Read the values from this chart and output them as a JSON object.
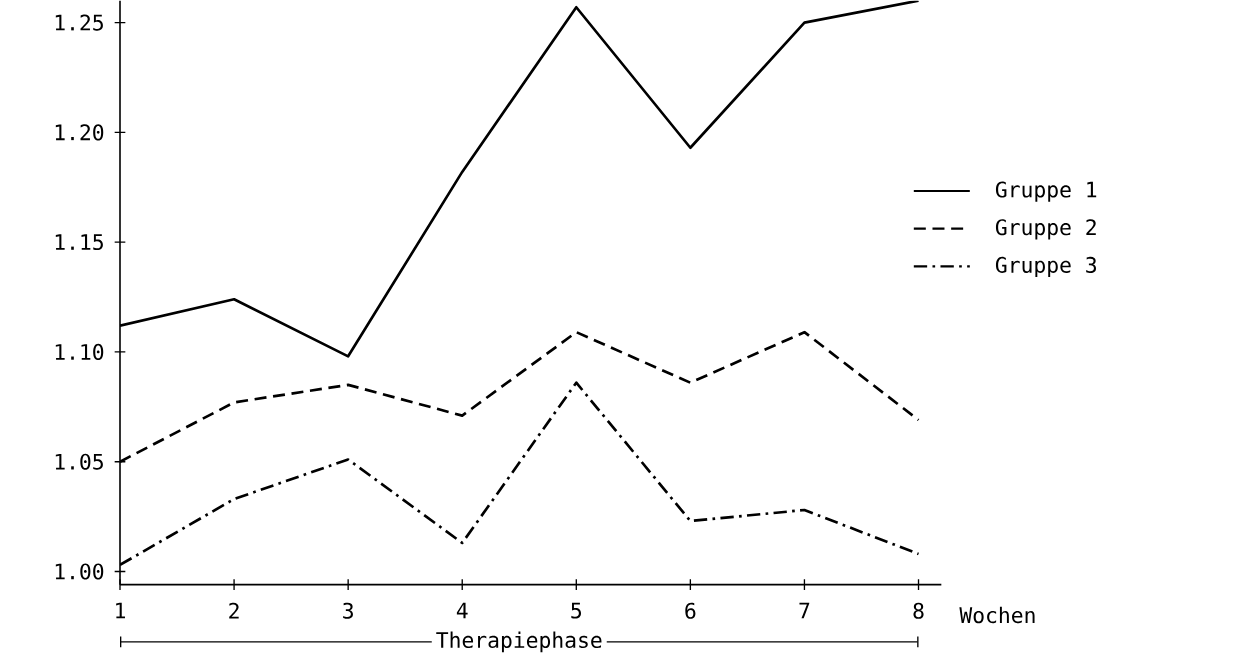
{
  "chart_data": {
    "type": "line",
    "x": [
      1,
      2,
      3,
      4,
      5,
      6,
      7,
      8
    ],
    "xlabel": "Wochen",
    "annotations": [
      "Therapiephase"
    ],
    "series": [
      {
        "name": "Gruppe 1",
        "color": "#000000",
        "line_style": "solid",
        "values": [
          1.112,
          1.124,
          1.098,
          1.182,
          1.257,
          1.193,
          1.25,
          1.26
        ]
      },
      {
        "name": "Gruppe 2",
        "color": "#000000",
        "line_style": "dashed",
        "values": [
          1.05,
          1.077,
          1.085,
          1.071,
          1.109,
          1.086,
          1.109,
          1.069
        ]
      },
      {
        "name": "Gruppe 3",
        "color": "#000000",
        "line_style": "dashdot",
        "values": [
          1.003,
          1.033,
          1.051,
          1.013,
          1.086,
          1.023,
          1.028,
          1.008
        ]
      }
    ],
    "xlim": [
      1,
      8.2
    ],
    "ylim": [
      0.994,
      1.26
    ],
    "xticks": [
      1,
      2,
      3,
      4,
      5,
      6,
      7,
      8
    ],
    "yticks": [
      {
        "value": 1.0,
        "label": "1.00"
      },
      1.05,
      {
        "value": 1.1,
        "label": "1.10"
      },
      1.15,
      {
        "value": 1.2,
        "label": "1.20"
      },
      1.25
    ],
    "legend": "right",
    "grid": false,
    "marker": "none"
  }
}
